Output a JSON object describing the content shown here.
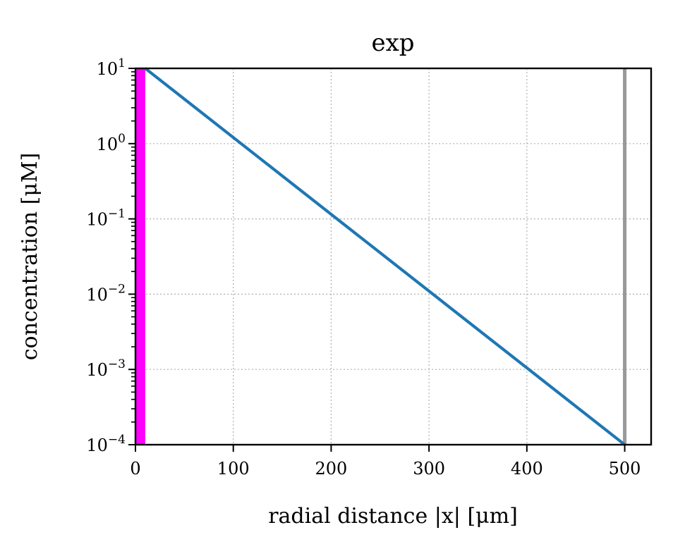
{
  "chart_data": {
    "type": "line",
    "title": "exp",
    "xlabel": "radial distance |x| [μm]",
    "ylabel": "concentration [μM]",
    "xscale": "linear",
    "yscale": "log",
    "xlim": [
      0,
      527
    ],
    "ylim": [
      0.0001,
      10
    ],
    "grid": true,
    "xticks": [
      {
        "value": 0,
        "label": "0"
      },
      {
        "value": 100,
        "label": "100"
      },
      {
        "value": 200,
        "label": "200"
      },
      {
        "value": 300,
        "label": "300"
      },
      {
        "value": 400,
        "label": "400"
      },
      {
        "value": 500,
        "label": "500"
      }
    ],
    "yticks": [
      {
        "value": 10,
        "base": "10",
        "exp": "1"
      },
      {
        "value": 1,
        "base": "10",
        "exp": "0"
      },
      {
        "value": 0.1,
        "base": "10",
        "exp": "−1"
      },
      {
        "value": 0.01,
        "base": "10",
        "exp": "−2"
      },
      {
        "value": 0.001,
        "base": "10",
        "exp": "−3"
      },
      {
        "value": 0.0001,
        "base": "10",
        "exp": "−4"
      }
    ],
    "series": [
      {
        "color": "#1f77b4",
        "x": [
          10,
          500
        ],
        "y": [
          10,
          0.0001
        ]
      }
    ],
    "shaded_band": {
      "x0": 0,
      "x1": 10,
      "color": "#ff00ff"
    },
    "vertical_line": {
      "x": 500,
      "color": "#999999"
    }
  }
}
